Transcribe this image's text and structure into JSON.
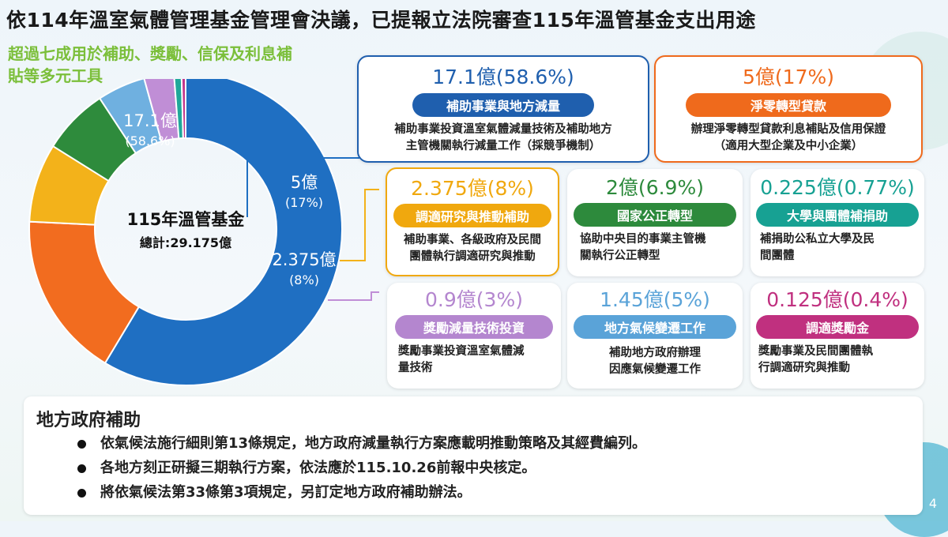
{
  "header": {
    "title": "依114年溫室氣體管理基金管理會決議，已提報立法院審查115年溫管基金支出用途",
    "subtitle": "超過七成用於補助、獎勵、信保及利息補貼等多元工具"
  },
  "chart_data": {
    "type": "pie",
    "title": "115年溫管基金",
    "total_label": "總計:29.175億",
    "unit": "億",
    "slices": [
      {
        "name": "補助事業與地方減量",
        "value": 17.1,
        "percent": "58.6%",
        "color": "#1f6fc2",
        "label_value": "17.1億",
        "label_percent": "(58.6%)"
      },
      {
        "name": "淨零轉型貸款",
        "value": 5,
        "percent": "17%",
        "color": "#f26c1f",
        "label_value": "5億",
        "label_percent": "(17%)"
      },
      {
        "name": "調適研究與推動補助",
        "value": 2.375,
        "percent": "8%",
        "color": "#f3b21a",
        "label_value": "2.375億",
        "label_percent": "(8%)"
      },
      {
        "name": "國家公正轉型",
        "value": 2,
        "percent": "6.9%",
        "color": "#2e8b3c",
        "label_value": "",
        "label_percent": ""
      },
      {
        "name": "地方氣候變遷工作",
        "value": 1.45,
        "percent": "5%",
        "color": "#6fb0e0",
        "label_value": "",
        "label_percent": ""
      },
      {
        "name": "獎勵減量技術投資",
        "value": 0.9,
        "percent": "3%",
        "color": "#c08ed6",
        "label_value": "",
        "label_percent": ""
      },
      {
        "name": "大學與團體補捐助",
        "value": 0.225,
        "percent": "0.77%",
        "color": "#1fa89a",
        "label_value": "",
        "label_percent": ""
      },
      {
        "name": "調適獎勵金",
        "value": 0.125,
        "percent": "0.4%",
        "color": "#c2358c",
        "label_value": "",
        "label_percent": ""
      }
    ]
  },
  "cards": {
    "c1": {
      "amount": "17.1億(58.6%)",
      "pill": "補助事業與地方減量",
      "desc1": "補助事業投資溫室氣體減量技術及補助地方",
      "desc2": "主管機關執行減量工作（採競爭機制）",
      "color": "#1f5fae"
    },
    "c2": {
      "amount": "5億(17%)",
      "pill": "淨零轉型貸款",
      "desc1": "辦理淨零轉型貸款利息補貼及信用保證",
      "desc2": "（適用大型企業及中小企業）",
      "color": "#ef6a1c"
    },
    "c3": {
      "amount": "2.375億(8%)",
      "pill": "調適研究與推動補助",
      "desc1": "補助事業、各級政府及民間",
      "desc2": "團體執行調適研究與推動",
      "color": "#f0a80e"
    },
    "c4": {
      "amount": "2億(6.9%)",
      "pill": "國家公正轉型",
      "desc1": "協助中央目的事業主管機",
      "desc2": "關執行公正轉型",
      "color": "#2d8a3c"
    },
    "c5": {
      "amount": "0.225億(0.77%)",
      "pill": "大學與團體補捐助",
      "desc1": "補捐助公私立大學及民",
      "desc2": "間團體",
      "color": "#17a193"
    },
    "c6": {
      "amount": "0.9億(3%)",
      "pill": "獎勵減量技術投資",
      "desc1": "獎勵事業投資溫室氣體減",
      "desc2": "量技術",
      "color": "#b486cf"
    },
    "c7": {
      "amount": "1.45億(5%)",
      "pill": "地方氣候變遷工作",
      "desc1": "補助地方政府辦理",
      "desc2": "因應氣候變遷工作",
      "color": "#5aa3d8"
    },
    "c8": {
      "amount": "0.125億(0.4%)",
      "pill": "調適獎勵金",
      "desc1": "獎勵事業及民間團體執",
      "desc2": "行調適研究與推動",
      "color": "#c0307f"
    }
  },
  "bottom": {
    "heading": "地方政府補助",
    "items": [
      "依氣候法施行細則第13條規定，地方政府減量執行方案應載明推動策略及其經費編列。",
      "各地方刻正研擬三期執行方案，依法應於115.10.26前報中央核定。",
      "將依氣候法第33條第3項規定，另訂定地方政府補助辦法。"
    ]
  },
  "page_number": "4"
}
